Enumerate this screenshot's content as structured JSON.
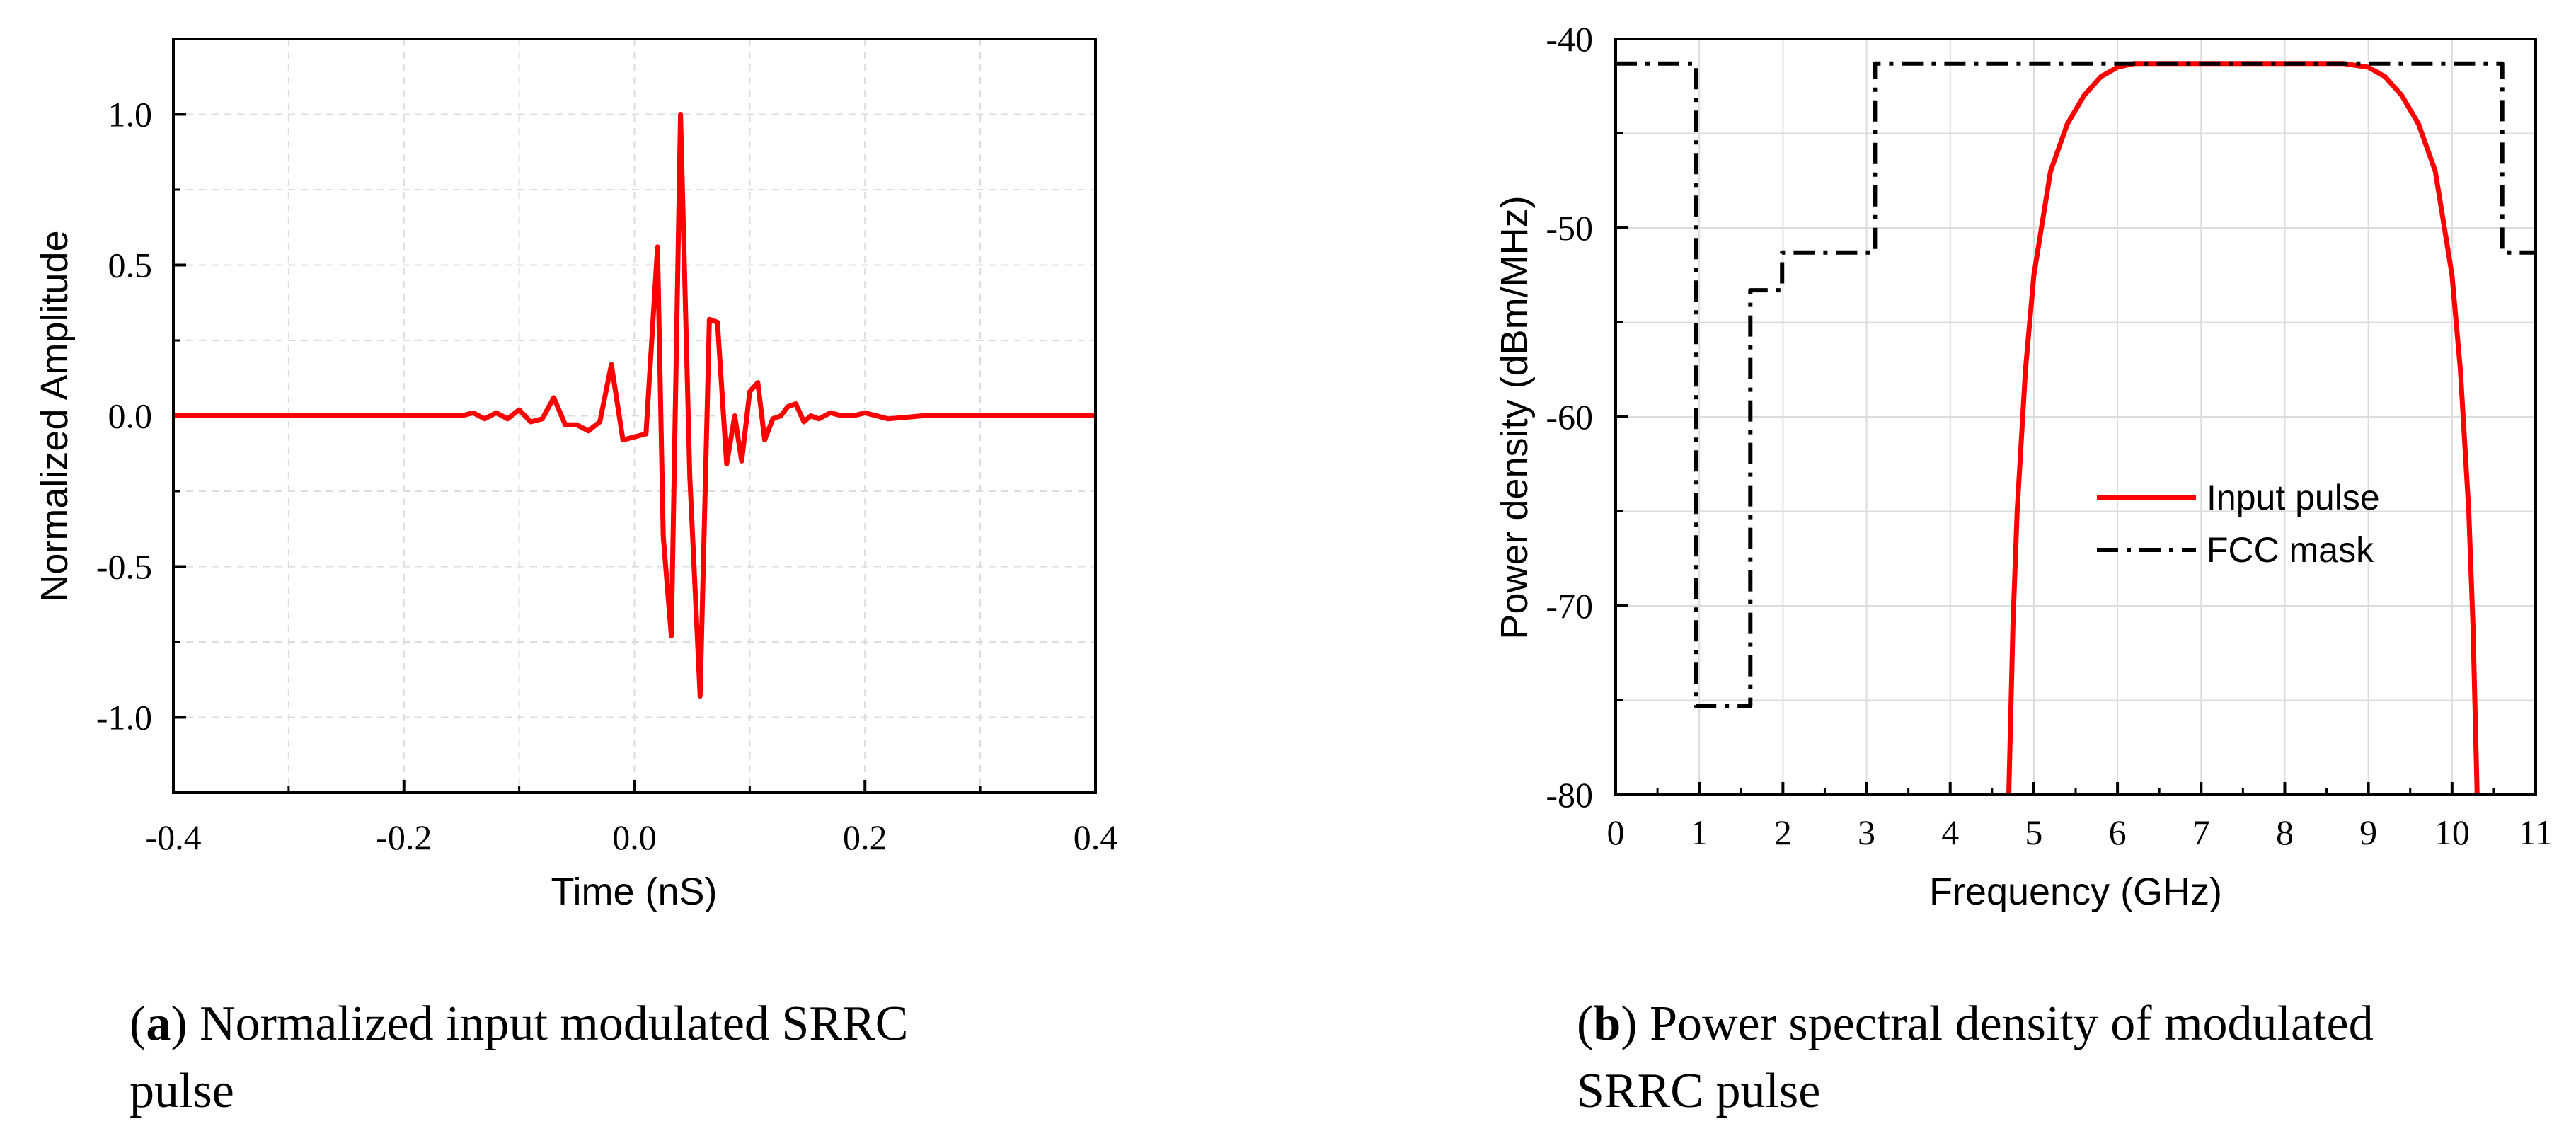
{
  "chart_data": [
    {
      "type": "line",
      "id": "a",
      "title": "",
      "xlabel": "Time (nS)",
      "ylabel": "Normalized Amplitude",
      "xlim": [
        -0.4,
        0.4
      ],
      "ylim": [
        -1.25,
        1.25
      ],
      "xticks": [
        -0.4,
        -0.2,
        0.0,
        0.2,
        0.4
      ],
      "xtick_labels": [
        "-0.4",
        "-0.2",
        "0.0",
        "0.2",
        "0.4"
      ],
      "yticks": [
        -1.0,
        -0.5,
        0.0,
        0.5,
        1.0
      ],
      "ytick_labels": [
        "-1.0",
        "-0.5",
        "0.0",
        "0.5",
        "1.0"
      ],
      "grid": true,
      "color": "#ff0000",
      "series": [
        {
          "name": "Normalized input modulated SRRC pulse",
          "x": [
            -0.4,
            -0.3,
            -0.2,
            -0.15,
            -0.14,
            -0.13,
            -0.12,
            -0.11,
            -0.1,
            -0.09,
            -0.08,
            -0.07,
            -0.06,
            -0.05,
            -0.04,
            -0.03,
            -0.02,
            -0.01,
            0.0,
            0.01,
            0.02,
            0.025,
            0.032,
            0.04,
            0.048,
            0.057,
            0.065,
            0.072,
            0.08,
            0.087,
            0.093,
            0.1,
            0.107,
            0.113,
            0.12,
            0.127,
            0.133,
            0.14,
            0.147,
            0.153,
            0.16,
            0.17,
            0.18,
            0.19,
            0.2,
            0.22,
            0.25,
            0.3,
            0.35,
            0.4
          ],
          "y": [
            0.0,
            0.0,
            0.0,
            0.0,
            0.01,
            -0.01,
            0.01,
            -0.01,
            0.02,
            -0.02,
            -0.01,
            0.06,
            -0.03,
            -0.03,
            -0.05,
            -0.02,
            0.17,
            -0.08,
            -0.07,
            -0.06,
            0.56,
            -0.4,
            -0.73,
            1.0,
            -0.2,
            -0.93,
            0.32,
            0.31,
            -0.16,
            0.0,
            -0.15,
            0.08,
            0.11,
            -0.08,
            -0.01,
            0.0,
            0.03,
            0.04,
            -0.02,
            0.0,
            -0.01,
            0.01,
            0.0,
            0.0,
            0.01,
            -0.01,
            0.0,
            0.0,
            0.0,
            0.0
          ]
        }
      ]
    },
    {
      "type": "line",
      "id": "b",
      "title": "",
      "xlabel": "Frequency (GHz)",
      "ylabel": "Power density (dBm/MHz)",
      "xlim": [
        0,
        11
      ],
      "ylim": [
        -80,
        -40
      ],
      "xticks": [
        0,
        1,
        2,
        3,
        4,
        5,
        6,
        7,
        8,
        9,
        10,
        11
      ],
      "xtick_labels": [
        "0",
        "1",
        "2",
        "3",
        "4",
        "5",
        "6",
        "7",
        "8",
        "9",
        "10",
        "11"
      ],
      "yticks": [
        -80,
        -70,
        -60,
        -50,
        -40
      ],
      "ytick_labels": [
        "-80",
        "-70",
        "-60",
        "-50",
        "-40"
      ],
      "grid": true,
      "legend_position": "center-right",
      "series": [
        {
          "name": "Input pulse",
          "color": "#ff0000",
          "style": "solid",
          "x": [
            4.7,
            4.75,
            4.8,
            4.9,
            5.0,
            5.2,
            5.4,
            5.6,
            5.8,
            6.0,
            6.2,
            8.7,
            9.0,
            9.2,
            9.4,
            9.6,
            9.8,
            10.0,
            10.1,
            10.2,
            10.25,
            10.3
          ],
          "y": [
            -80,
            -71,
            -65,
            -57.5,
            -52.5,
            -47,
            -44.5,
            -43,
            -42,
            -41.5,
            -41.3,
            -41.3,
            -41.5,
            -42,
            -43,
            -44.5,
            -47,
            -52.5,
            -57.5,
            -65,
            -71,
            -80
          ]
        },
        {
          "name": "FCC mask",
          "color": "#000000",
          "style": "dashdot",
          "x": [
            0,
            0.96,
            0.96,
            1.61,
            1.61,
            1.99,
            1.99,
            3.1,
            3.1,
            10.6,
            10.6,
            11
          ],
          "y": [
            -41.3,
            -41.3,
            -75.3,
            -75.3,
            -53.3,
            -53.3,
            -51.3,
            -51.3,
            -41.3,
            -41.3,
            -51.3,
            -51.3
          ]
        }
      ]
    }
  ],
  "captions": {
    "a_letter": "a",
    "a_text": " Normalized input modulated SRRC",
    "a_text2": "pulse",
    "b_letter": "b",
    "b_text": " Power spectral density of modulated",
    "b_text2": "SRRC pulse"
  }
}
